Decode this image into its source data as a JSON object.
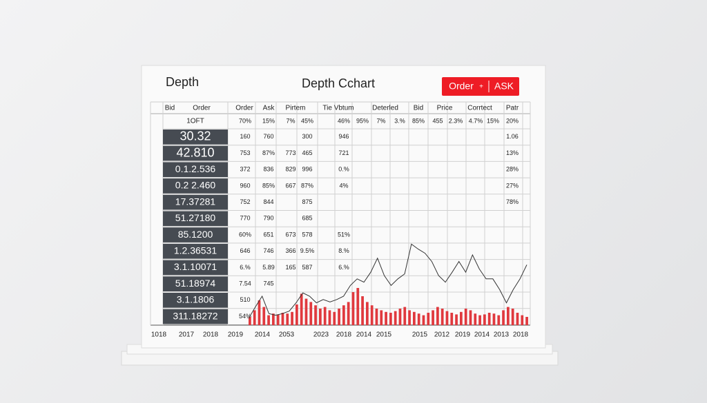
{
  "header": {
    "left_title": "Depth",
    "title": "Depth Cchart",
    "button": {
      "left": "Order",
      "symbol": "+",
      "right": "ASK"
    }
  },
  "table": {
    "headers": [
      "Bid",
      "Order",
      "Order",
      "Ask",
      "Pirtem",
      "Tie Vbtum",
      "Deterled",
      "Bid",
      "Price",
      "Corrtect",
      "Patr"
    ],
    "rows": [
      {
        "label": "1OFT",
        "cells": [
          "70%",
          "15%",
          "7%",
          "45%",
          "46%",
          "95%",
          "7%",
          "3.%",
          "85%",
          "455",
          "2.3%",
          "4.7%",
          "15%",
          "20%"
        ]
      },
      {
        "label": "30.32",
        "cells": [
          "160",
          "760",
          null,
          "300",
          "946",
          null,
          null,
          null,
          null,
          null,
          null,
          null,
          null,
          "1.06"
        ]
      },
      {
        "label": "42.810",
        "cells": [
          "753",
          "87%",
          "773",
          "465",
          "721",
          null,
          null,
          null,
          null,
          null,
          null,
          null,
          null,
          "13%"
        ]
      },
      {
        "label": "0.1.2.536",
        "cells": [
          "372",
          "836",
          "829",
          "996",
          "0.%",
          null,
          null,
          null,
          null,
          null,
          null,
          null,
          null,
          "28%"
        ]
      },
      {
        "label": "0.2 2.460",
        "cells": [
          "960",
          "85%",
          "667",
          "87%",
          "4%",
          null,
          null,
          null,
          null,
          null,
          null,
          null,
          null,
          "27%"
        ]
      },
      {
        "label": "17.37281",
        "cells": [
          "752",
          "844",
          null,
          "875",
          null,
          null,
          null,
          null,
          null,
          null,
          null,
          null,
          null,
          "78%"
        ]
      },
      {
        "label": "51.27180",
        "cells": [
          "770",
          "790",
          null,
          "685",
          null,
          null,
          null,
          null,
          null,
          null,
          null,
          null,
          null,
          null
        ]
      },
      {
        "label": "85.1200",
        "cells": [
          "60%",
          "651",
          "673",
          "578",
          "51%",
          null,
          null,
          null,
          null,
          null,
          null,
          null,
          null,
          null
        ]
      },
      {
        "label": "1.2.36531",
        "cells": [
          "646",
          "746",
          "366",
          "9.5%",
          "8.%",
          null,
          null,
          null,
          null,
          null,
          null,
          null,
          null,
          null
        ]
      },
      {
        "label": "3.1.10071",
        "cells": [
          "6.%",
          "5.89",
          "165",
          "587",
          "6.%",
          null,
          null,
          null,
          null,
          null,
          null,
          null,
          null,
          null
        ]
      },
      {
        "label": "51.18974",
        "cells": [
          "7.54",
          "745",
          null,
          null,
          null,
          null,
          null,
          null,
          null,
          null,
          null,
          null,
          null,
          null
        ]
      },
      {
        "label": "3.1.1806",
        "cells": [
          "510",
          null,
          null,
          null,
          null,
          null,
          null,
          null,
          null,
          null,
          null,
          null,
          null,
          null
        ]
      },
      {
        "label": "311.18272",
        "cells": [
          "54%",
          null,
          null,
          null,
          null,
          null,
          null,
          null,
          null,
          null,
          null,
          null,
          null,
          null
        ]
      }
    ],
    "years": [
      "1018",
      "2017",
      "2018",
      "2019",
      "2014",
      "2053",
      "2023",
      "2018",
      "2014",
      "2015",
      "2015",
      "2012",
      "2019",
      "2014",
      "2013",
      "2018"
    ]
  },
  "chart": {
    "line": [
      8,
      22,
      35,
      14,
      12,
      14,
      17,
      27,
      39,
      35,
      27,
      31,
      28,
      31,
      35,
      48,
      56,
      52,
      64,
      81,
      60,
      48,
      56,
      62,
      98,
      92,
      87,
      77,
      60,
      52,
      64,
      77,
      64,
      85,
      68,
      56,
      56,
      43,
      27,
      43,
      56,
      73
    ],
    "bars": [
      10,
      18,
      30,
      22,
      12,
      14,
      13,
      15,
      14,
      16,
      25,
      38,
      32,
      28,
      24,
      20,
      22,
      18,
      16,
      20,
      24,
      28,
      40,
      45,
      35,
      28,
      24,
      20,
      18,
      16,
      15,
      17,
      20,
      22,
      18,
      16,
      14,
      12,
      15,
      18,
      22,
      20,
      17,
      15,
      13,
      16,
      20,
      18,
      14,
      12,
      13,
      15,
      14,
      12,
      18,
      22,
      20,
      15,
      12,
      10
    ],
    "ylim": [
      0,
      100
    ],
    "line_color": "#333333",
    "bar_color": "#e0393e"
  }
}
